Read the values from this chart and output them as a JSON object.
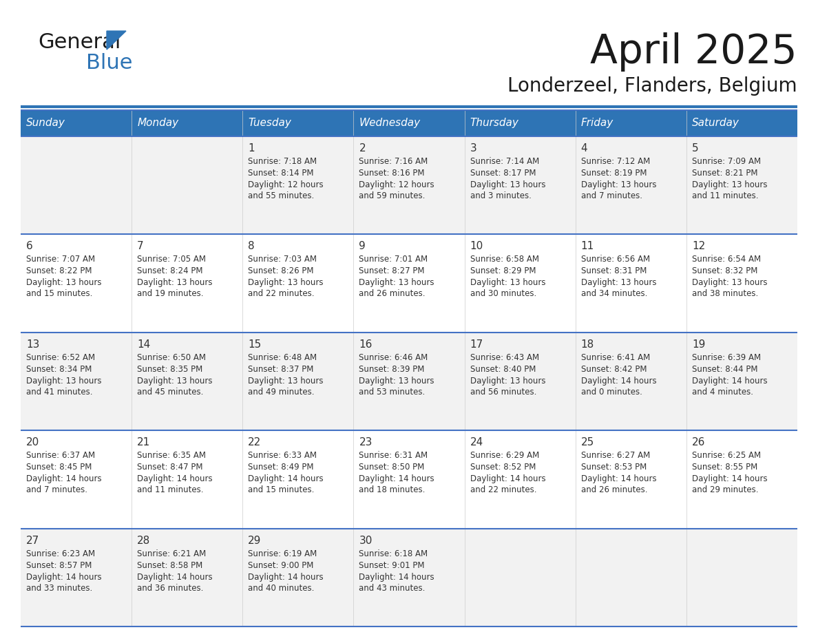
{
  "title": "April 2025",
  "subtitle": "Londerzeel, Flanders, Belgium",
  "header_bg_color": "#2e74b5",
  "header_text_color": "#ffffff",
  "cell_bg_light": "#f2f2f2",
  "cell_bg_white": "#ffffff",
  "text_color": "#333333",
  "days": [
    "Sunday",
    "Monday",
    "Tuesday",
    "Wednesday",
    "Thursday",
    "Friday",
    "Saturday"
  ],
  "weeks": [
    [
      {
        "date": "",
        "sunrise": "",
        "sunset": "",
        "daylight_h": "",
        "daylight_m": ""
      },
      {
        "date": "",
        "sunrise": "",
        "sunset": "",
        "daylight_h": "",
        "daylight_m": ""
      },
      {
        "date": "1",
        "sunrise": "7:18 AM",
        "sunset": "8:14 PM",
        "daylight_h": "12",
        "daylight_m": "55"
      },
      {
        "date": "2",
        "sunrise": "7:16 AM",
        "sunset": "8:16 PM",
        "daylight_h": "12",
        "daylight_m": "59"
      },
      {
        "date": "3",
        "sunrise": "7:14 AM",
        "sunset": "8:17 PM",
        "daylight_h": "13",
        "daylight_m": "3"
      },
      {
        "date": "4",
        "sunrise": "7:12 AM",
        "sunset": "8:19 PM",
        "daylight_h": "13",
        "daylight_m": "7"
      },
      {
        "date": "5",
        "sunrise": "7:09 AM",
        "sunset": "8:21 PM",
        "daylight_h": "13",
        "daylight_m": "11"
      }
    ],
    [
      {
        "date": "6",
        "sunrise": "7:07 AM",
        "sunset": "8:22 PM",
        "daylight_h": "13",
        "daylight_m": "15"
      },
      {
        "date": "7",
        "sunrise": "7:05 AM",
        "sunset": "8:24 PM",
        "daylight_h": "13",
        "daylight_m": "19"
      },
      {
        "date": "8",
        "sunrise": "7:03 AM",
        "sunset": "8:26 PM",
        "daylight_h": "13",
        "daylight_m": "22"
      },
      {
        "date": "9",
        "sunrise": "7:01 AM",
        "sunset": "8:27 PM",
        "daylight_h": "13",
        "daylight_m": "26"
      },
      {
        "date": "10",
        "sunrise": "6:58 AM",
        "sunset": "8:29 PM",
        "daylight_h": "13",
        "daylight_m": "30"
      },
      {
        "date": "11",
        "sunrise": "6:56 AM",
        "sunset": "8:31 PM",
        "daylight_h": "13",
        "daylight_m": "34"
      },
      {
        "date": "12",
        "sunrise": "6:54 AM",
        "sunset": "8:32 PM",
        "daylight_h": "13",
        "daylight_m": "38"
      }
    ],
    [
      {
        "date": "13",
        "sunrise": "6:52 AM",
        "sunset": "8:34 PM",
        "daylight_h": "13",
        "daylight_m": "41"
      },
      {
        "date": "14",
        "sunrise": "6:50 AM",
        "sunset": "8:35 PM",
        "daylight_h": "13",
        "daylight_m": "45"
      },
      {
        "date": "15",
        "sunrise": "6:48 AM",
        "sunset": "8:37 PM",
        "daylight_h": "13",
        "daylight_m": "49"
      },
      {
        "date": "16",
        "sunrise": "6:46 AM",
        "sunset": "8:39 PM",
        "daylight_h": "13",
        "daylight_m": "53"
      },
      {
        "date": "17",
        "sunrise": "6:43 AM",
        "sunset": "8:40 PM",
        "daylight_h": "13",
        "daylight_m": "56"
      },
      {
        "date": "18",
        "sunrise": "6:41 AM",
        "sunset": "8:42 PM",
        "daylight_h": "14",
        "daylight_m": "0"
      },
      {
        "date": "19",
        "sunrise": "6:39 AM",
        "sunset": "8:44 PM",
        "daylight_h": "14",
        "daylight_m": "4"
      }
    ],
    [
      {
        "date": "20",
        "sunrise": "6:37 AM",
        "sunset": "8:45 PM",
        "daylight_h": "14",
        "daylight_m": "7"
      },
      {
        "date": "21",
        "sunrise": "6:35 AM",
        "sunset": "8:47 PM",
        "daylight_h": "14",
        "daylight_m": "11"
      },
      {
        "date": "22",
        "sunrise": "6:33 AM",
        "sunset": "8:49 PM",
        "daylight_h": "14",
        "daylight_m": "15"
      },
      {
        "date": "23",
        "sunrise": "6:31 AM",
        "sunset": "8:50 PM",
        "daylight_h": "14",
        "daylight_m": "18"
      },
      {
        "date": "24",
        "sunrise": "6:29 AM",
        "sunset": "8:52 PM",
        "daylight_h": "14",
        "daylight_m": "22"
      },
      {
        "date": "25",
        "sunrise": "6:27 AM",
        "sunset": "8:53 PM",
        "daylight_h": "14",
        "daylight_m": "26"
      },
      {
        "date": "26",
        "sunrise": "6:25 AM",
        "sunset": "8:55 PM",
        "daylight_h": "14",
        "daylight_m": "29"
      }
    ],
    [
      {
        "date": "27",
        "sunrise": "6:23 AM",
        "sunset": "8:57 PM",
        "daylight_h": "14",
        "daylight_m": "33"
      },
      {
        "date": "28",
        "sunrise": "6:21 AM",
        "sunset": "8:58 PM",
        "daylight_h": "14",
        "daylight_m": "36"
      },
      {
        "date": "29",
        "sunrise": "6:19 AM",
        "sunset": "9:00 PM",
        "daylight_h": "14",
        "daylight_m": "40"
      },
      {
        "date": "30",
        "sunrise": "6:18 AM",
        "sunset": "9:01 PM",
        "daylight_h": "14",
        "daylight_m": "43"
      },
      {
        "date": "",
        "sunrise": "",
        "sunset": "",
        "daylight_h": "",
        "daylight_m": ""
      },
      {
        "date": "",
        "sunrise": "",
        "sunset": "",
        "daylight_h": "",
        "daylight_m": ""
      },
      {
        "date": "",
        "sunrise": "",
        "sunset": "",
        "daylight_h": "",
        "daylight_m": ""
      }
    ]
  ],
  "logo_text1_color": "#1a1a1a",
  "logo_text2_color": "#2e74b5",
  "logo_triangle_color": "#2e74b5",
  "divider_color": "#2e74b5",
  "week_divider_color": "#4472c4",
  "title_color": "#1a1a1a",
  "subtitle_color": "#1a1a1a"
}
